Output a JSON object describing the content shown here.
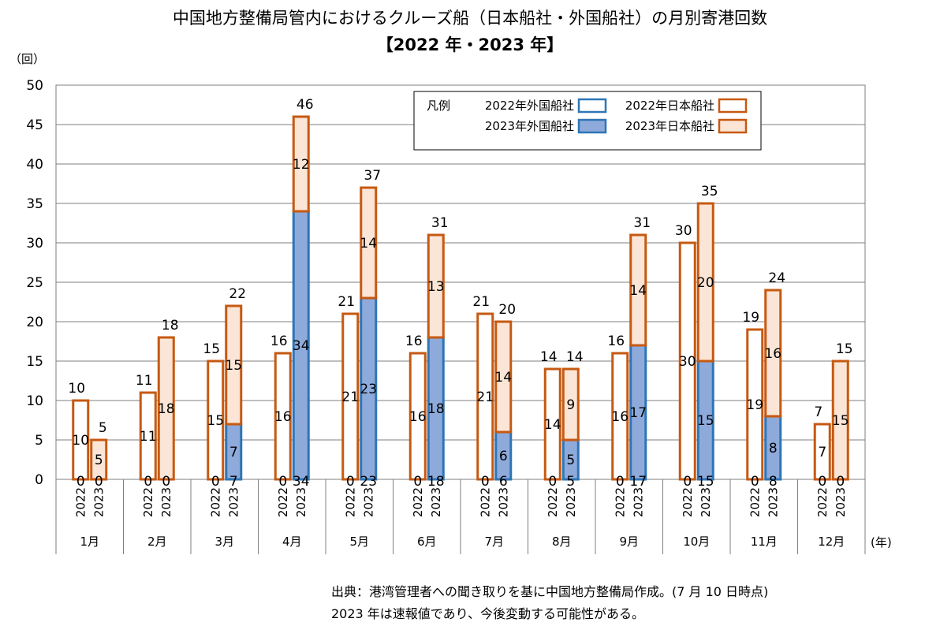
{
  "header": {
    "title": "中国地方整備局管内におけるクルーズ船（日本船社・外国船社）の月別寄港回数",
    "subtitle": "【2022 年・2023 年】",
    "y_unit": "（回）",
    "x_unit": "(年)"
  },
  "notes": {
    "source": "出典：港湾管理者への聞き取りを基に中国地方整備局作成。(7 月 10 日時点)",
    "preliminary": "2023 年は速報値であり、今後変動する可能性がある。"
  },
  "colors": {
    "orange_border": "#c65911",
    "blue_border": "#2e75b6",
    "foreign_2023_fill": "#8eaadb",
    "japanese_2023_fill": "#fbe5d6",
    "white_fill": "#ffffff"
  },
  "chart_data": {
    "type": "bar",
    "stacked": true,
    "ylim": [
      0,
      50
    ],
    "yticks": [
      0,
      5,
      10,
      15,
      20,
      25,
      30,
      35,
      40,
      45,
      50
    ],
    "grid": true,
    "legend_title": "凡例",
    "legend_position": "top-right",
    "months": [
      "1月",
      "2月",
      "3月",
      "4月",
      "5月",
      "6月",
      "7月",
      "8月",
      "9月",
      "10月",
      "11月",
      "12月"
    ],
    "years": [
      "2022",
      "2023"
    ],
    "series": [
      {
        "name": "2022年外国船社",
        "year": "2022",
        "stack": "foreign",
        "values": [
          0,
          0,
          0,
          0,
          0,
          0,
          0,
          0,
          0,
          0,
          0,
          0
        ]
      },
      {
        "name": "2022年日本船社",
        "year": "2022",
        "stack": "japanese",
        "values": [
          10,
          11,
          15,
          16,
          21,
          16,
          21,
          14,
          16,
          30,
          19,
          7
        ]
      },
      {
        "name": "2023年外国船社",
        "year": "2023",
        "stack": "foreign",
        "values": [
          0,
          0,
          7,
          34,
          23,
          18,
          6,
          5,
          17,
          15,
          8,
          0
        ]
      },
      {
        "name": "2023年日本船社",
        "year": "2023",
        "stack": "japanese",
        "values": [
          5,
          18,
          15,
          12,
          14,
          13,
          14,
          9,
          14,
          20,
          16,
          15
        ]
      }
    ],
    "totals_2022": [
      10,
      11,
      15,
      16,
      21,
      16,
      21,
      14,
      16,
      30,
      19,
      7
    ],
    "totals_2023": [
      5,
      18,
      22,
      46,
      37,
      31,
      20,
      14,
      31,
      35,
      24,
      15
    ]
  }
}
